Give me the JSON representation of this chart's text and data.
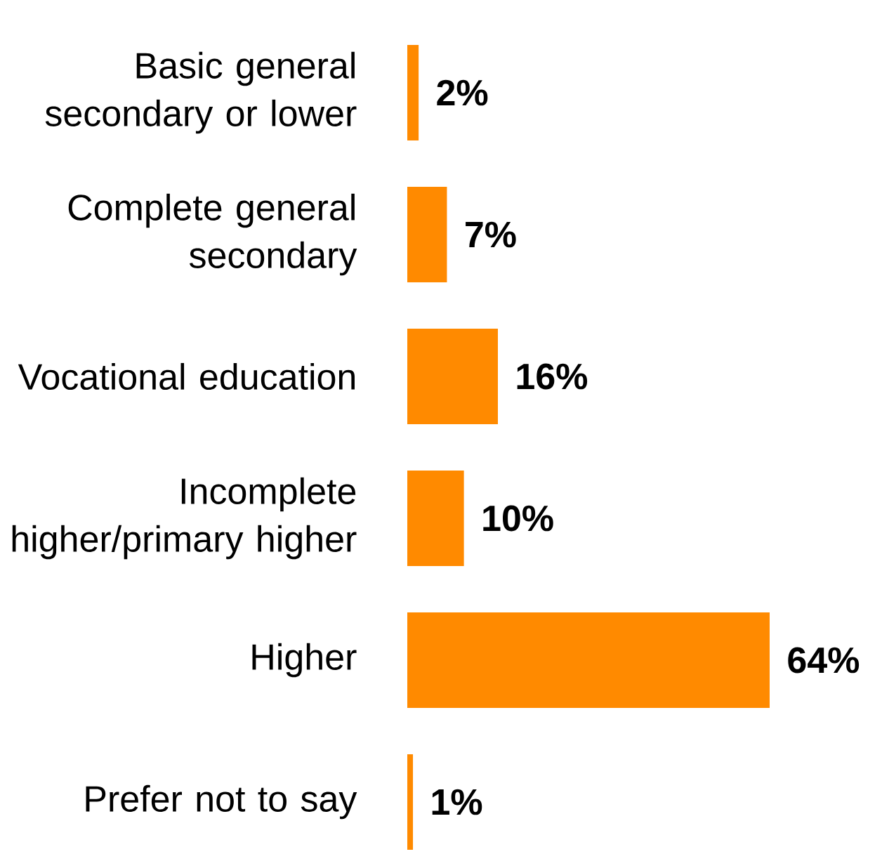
{
  "chart_data": {
    "type": "bar",
    "orientation": "horizontal",
    "categories": [
      "Basic general secondary or lower",
      "Complete general secondary",
      "Vocational education",
      "Incomplete higher/primary higher",
      "Higher",
      "Prefer not to say"
    ],
    "values": [
      2,
      7,
      16,
      10,
      64,
      1
    ],
    "value_labels": [
      "2%",
      "7%",
      "16%",
      "10%",
      "64%",
      "1%"
    ],
    "color": "#ff8a00"
  }
}
